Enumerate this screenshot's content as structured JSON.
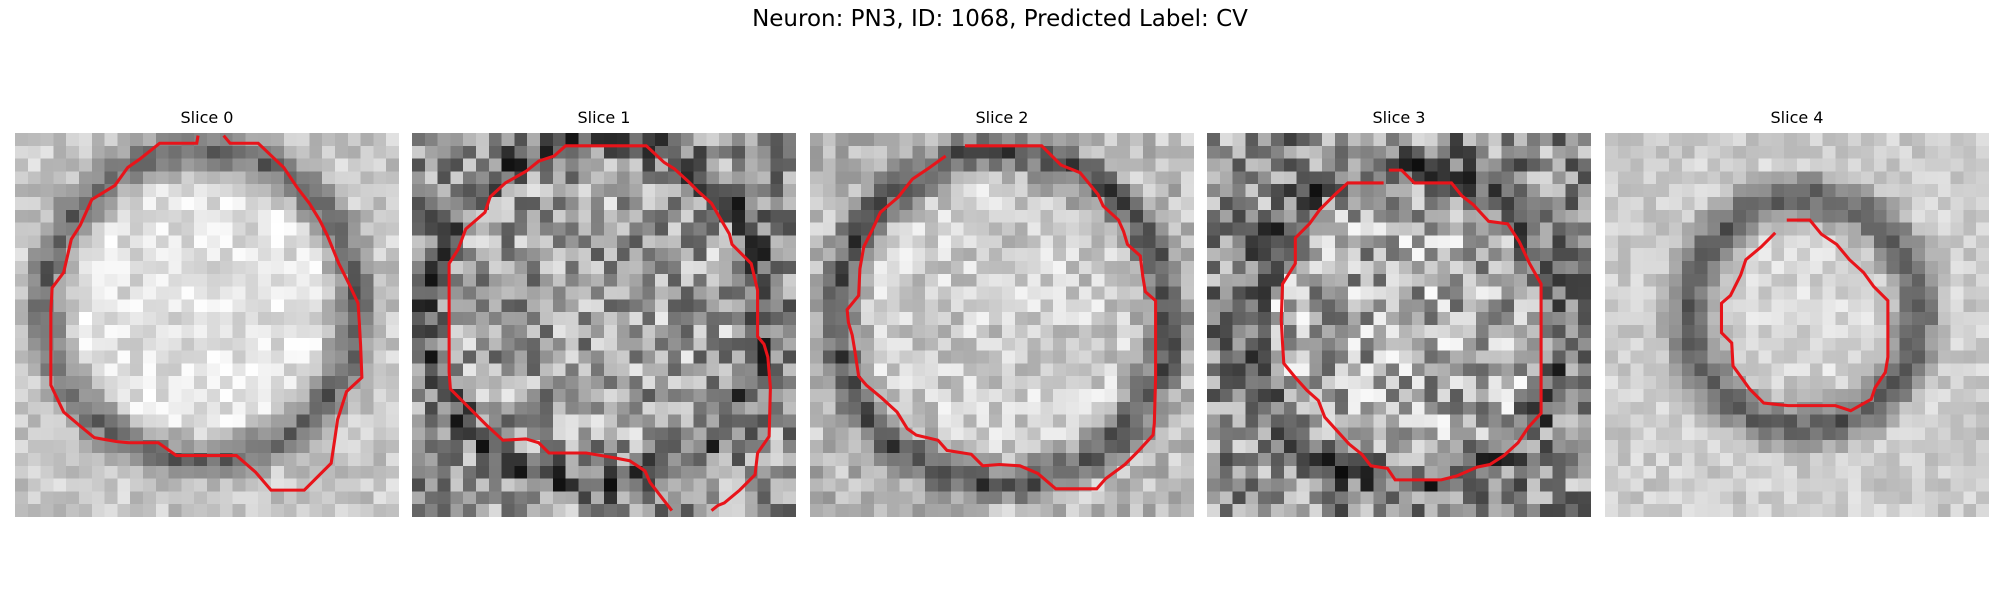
{
  "figure": {
    "title": "Neuron: PN3, ID: 1068, Predicted Label: CV"
  },
  "panels": [
    {
      "title": "Slice 0"
    },
    {
      "title": "Slice 1"
    },
    {
      "title": "Slice 2"
    },
    {
      "title": "Slice 3"
    },
    {
      "title": "Slice 4"
    }
  ],
  "colors": {
    "contour": "#e8141a",
    "background": "#ffffff"
  }
}
